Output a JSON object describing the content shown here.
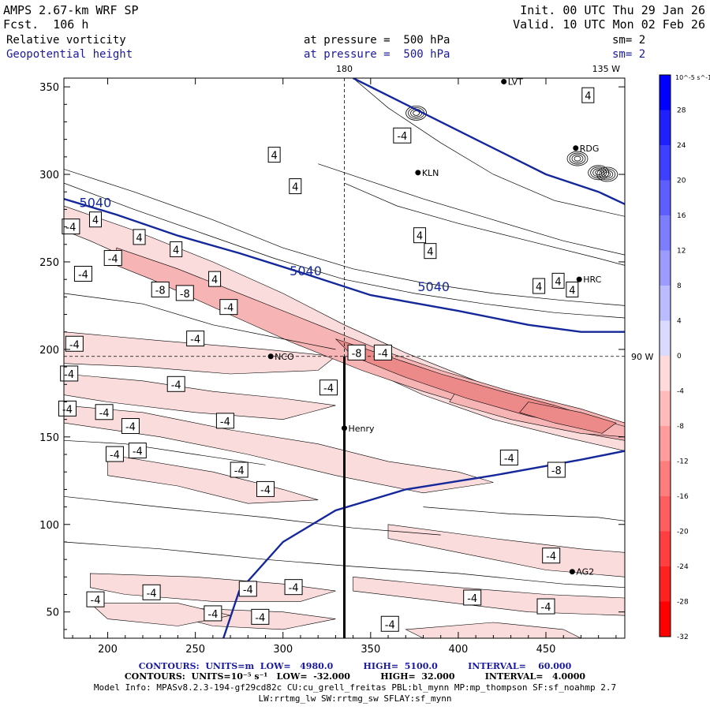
{
  "header": {
    "model": "AMPS 2.67-km WRF SP",
    "fcst_label": "Fcst.",
    "fcst_value": "106 h",
    "init_label": "Init.",
    "init_value": "00 UTC Thu 29 Jan 26",
    "valid_label": "Valid.",
    "valid_value": "10 UTC Mon 02 Feb 26",
    "field1": "Relative vorticity",
    "field1_level": "at pressure =  500 hPa",
    "field1_sm": "sm= 2",
    "field2": "Geopotential height",
    "field2_level": "at pressure =  500 hPa",
    "field2_sm": "sm= 2"
  },
  "colors": {
    "height_contour": "#14289b",
    "neg_fill": "#f4a6a6",
    "frame": "#000000"
  },
  "chart_data": {
    "type": "contour-map",
    "xlim": [
      175,
      495
    ],
    "ylim": [
      35,
      355
    ],
    "x_ticks": [
      200,
      250,
      300,
      350,
      400,
      450
    ],
    "y_ticks": [
      50,
      100,
      150,
      200,
      250,
      300,
      350
    ],
    "meridian_labels": [
      "180",
      "135 W",
      "90 W"
    ],
    "stations": [
      {
        "name": "LVT",
        "x": 426,
        "y": 353
      },
      {
        "name": "RDG",
        "x": 467,
        "y": 315
      },
      {
        "name": "KLN",
        "x": 377,
        "y": 301
      },
      {
        "name": "HRC",
        "x": 469,
        "y": 240
      },
      {
        "name": "NCO",
        "x": 293,
        "y": 196
      },
      {
        "name": "Henry",
        "x": 335,
        "y": 155
      },
      {
        "name": "AG2",
        "x": 465,
        "y": 73
      }
    ],
    "height_contours": [
      {
        "label": "5040",
        "points": [
          [
            175,
            286
          ],
          [
            205,
            277
          ],
          [
            240,
            265
          ],
          [
            275,
            255
          ],
          [
            310,
            244
          ],
          [
            350,
            231
          ],
          [
            400,
            222
          ],
          [
            440,
            214
          ],
          [
            470,
            210
          ],
          [
            495,
            210
          ]
        ]
      },
      {
        "label": "",
        "points": [
          [
            340,
            355
          ],
          [
            370,
            340
          ],
          [
            410,
            320
          ],
          [
            450,
            300
          ],
          [
            480,
            290
          ],
          [
            495,
            283
          ]
        ]
      },
      {
        "label": "",
        "points": [
          [
            266,
            35
          ],
          [
            275,
            62
          ],
          [
            300,
            90
          ],
          [
            330,
            108
          ],
          [
            370,
            120
          ],
          [
            420,
            128
          ],
          [
            470,
            137
          ],
          [
            495,
            142
          ]
        ]
      }
    ],
    "contour_labels": [
      {
        "text": "4",
        "x": 474,
        "y": 345
      },
      {
        "text": "-4",
        "x": 368,
        "y": 322
      },
      {
        "text": "4",
        "x": 295,
        "y": 311
      },
      {
        "text": "4",
        "x": 307,
        "y": 293
      },
      {
        "text": "4",
        "x": 193,
        "y": 274
      },
      {
        "text": "4",
        "x": 218,
        "y": 264
      },
      {
        "text": "4",
        "x": 239,
        "y": 257
      },
      {
        "text": "4",
        "x": 378,
        "y": 265
      },
      {
        "text": "4",
        "x": 384,
        "y": 256
      },
      {
        "text": "4",
        "x": 457,
        "y": 239
      },
      {
        "text": "4",
        "x": 465,
        "y": 234
      },
      {
        "text": "4",
        "x": 446,
        "y": 236
      },
      {
        "text": "-4",
        "x": 179,
        "y": 270
      },
      {
        "text": "-4",
        "x": 203,
        "y": 252
      },
      {
        "text": "-4",
        "x": 186,
        "y": 243
      },
      {
        "text": "4",
        "x": 261,
        "y": 240
      },
      {
        "text": "-8",
        "x": 230,
        "y": 234
      },
      {
        "text": "-8",
        "x": 244,
        "y": 232
      },
      {
        "text": "-4",
        "x": 269,
        "y": 224
      },
      {
        "text": "-4",
        "x": 250,
        "y": 206
      },
      {
        "text": "-4",
        "x": 181,
        "y": 203
      },
      {
        "text": "-8",
        "x": 342,
        "y": 198
      },
      {
        "text": "-4",
        "x": 357,
        "y": 198
      },
      {
        "text": "-4",
        "x": 178,
        "y": 186
      },
      {
        "text": "-4",
        "x": 239,
        "y": 180
      },
      {
        "text": "-4",
        "x": 326,
        "y": 178
      },
      {
        "text": "-4",
        "x": 177,
        "y": 166
      },
      {
        "text": "-4",
        "x": 198,
        "y": 164
      },
      {
        "text": "-4",
        "x": 213,
        "y": 156
      },
      {
        "text": "-4",
        "x": 267,
        "y": 159
      },
      {
        "text": "-4",
        "x": 204,
        "y": 140
      },
      {
        "text": "-4",
        "x": 217,
        "y": 142
      },
      {
        "text": "-4",
        "x": 275,
        "y": 131
      },
      {
        "text": "-4",
        "x": 290,
        "y": 120
      },
      {
        "text": "-4",
        "x": 429,
        "y": 138
      },
      {
        "text": "-8",
        "x": 456,
        "y": 131
      },
      {
        "text": "-4",
        "x": 453,
        "y": 82
      },
      {
        "text": "-4",
        "x": 193,
        "y": 57
      },
      {
        "text": "-4",
        "x": 225,
        "y": 61
      },
      {
        "text": "-4",
        "x": 280,
        "y": 63
      },
      {
        "text": "-4",
        "x": 260,
        "y": 49
      },
      {
        "text": "-4",
        "x": 287,
        "y": 47
      },
      {
        "text": "-4",
        "x": 306,
        "y": 64
      },
      {
        "text": "-4",
        "x": 408,
        "y": 58
      },
      {
        "text": "-4",
        "x": 450,
        "y": 53
      },
      {
        "text": "-4",
        "x": 361,
        "y": 43
      }
    ],
    "colorbar": {
      "unit": "10^-5 s^-1",
      "levels": [
        32,
        28,
        24,
        20,
        16,
        12,
        8,
        4,
        0,
        -4,
        -8,
        -12,
        -16,
        -20,
        -24,
        -28,
        -32
      ]
    },
    "cross_section": {
      "x": 335,
      "y_from": 35,
      "y_to": 196
    }
  },
  "footer": {
    "line1": "CONTOURS:  UNITS=m  LOW=   4980.0          HIGH=  5100.0          INTERVAL=    60.000",
    "line2": "CONTOURS:  UNITS=10⁻⁵ s⁻¹   LOW=  -32.000          HIGH=  32.000          INTERVAL=   4.0000",
    "line3": "Model Info: MPASv8.2.3-194-gf29cd82c CU:cu_grell_freitas PBL:bl_mynn MP:mp_thompson SF:sf_noahmp 2.7",
    "line4": "LW:rrtmg_lw SW:rrtmg_sw SFLAY:sf_mynn"
  }
}
